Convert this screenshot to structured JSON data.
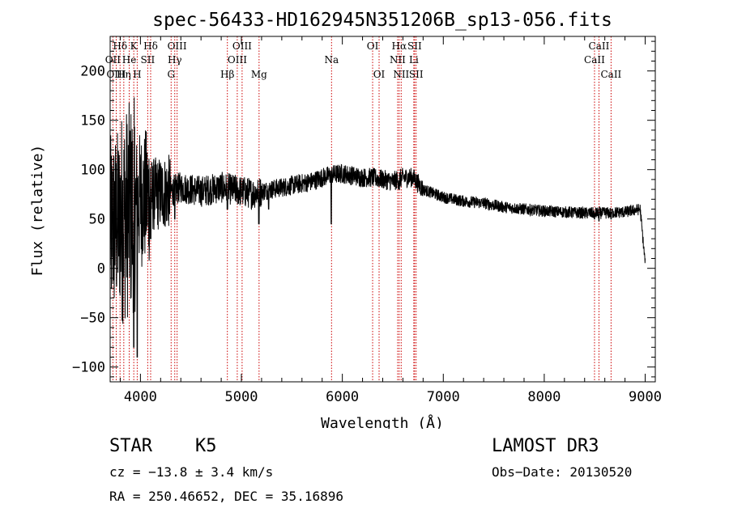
{
  "chart_data": {
    "type": "line",
    "title": "spec-56433-HD162945N351206B_sp13-056.fits",
    "xlabel": "Wavelength (Å)",
    "ylabel": "Flux (relative)",
    "xlim": [
      3700,
      9100
    ],
    "ylim": [
      -115,
      235
    ],
    "xticks": [
      4000,
      5000,
      6000,
      7000,
      8000,
      9000
    ],
    "yticks": [
      -100,
      -50,
      0,
      50,
      100,
      150,
      200
    ],
    "series": [
      {
        "name": "flux",
        "anchors": [
          [
            3700,
            40
          ],
          [
            3800,
            50
          ],
          [
            3900,
            60
          ],
          [
            4000,
            70
          ],
          [
            4100,
            74
          ],
          [
            4200,
            76
          ],
          [
            4300,
            78
          ],
          [
            4400,
            82
          ],
          [
            4500,
            80
          ],
          [
            4600,
            78
          ],
          [
            4700,
            80
          ],
          [
            4800,
            82
          ],
          [
            4900,
            80
          ],
          [
            5000,
            78
          ],
          [
            5100,
            76
          ],
          [
            5200,
            78
          ],
          [
            5300,
            80
          ],
          [
            5400,
            82
          ],
          [
            5500,
            84
          ],
          [
            5600,
            86
          ],
          [
            5700,
            88
          ],
          [
            5800,
            92
          ],
          [
            5900,
            95
          ],
          [
            6000,
            96
          ],
          [
            6100,
            94
          ],
          [
            6200,
            92
          ],
          [
            6300,
            92
          ],
          [
            6400,
            90
          ],
          [
            6500,
            88
          ],
          [
            6600,
            92
          ],
          [
            6700,
            92
          ],
          [
            6800,
            80
          ],
          [
            6900,
            76
          ],
          [
            7000,
            72
          ],
          [
            7200,
            68
          ],
          [
            7400,
            66
          ],
          [
            7600,
            62
          ],
          [
            7800,
            60
          ],
          [
            8000,
            58
          ],
          [
            8200,
            57
          ],
          [
            8400,
            56
          ],
          [
            8600,
            56
          ],
          [
            8800,
            57
          ],
          [
            8950,
            60
          ],
          [
            9000,
            5
          ]
        ],
        "features": [
          [
            3934,
            -80
          ],
          [
            3968,
            -90
          ],
          [
            4101,
            30
          ],
          [
            4340,
            50
          ],
          [
            4861,
            60
          ],
          [
            5173,
            45
          ],
          [
            5270,
            60
          ],
          [
            5890,
            45
          ],
          [
            6563,
            80
          ],
          [
            8498,
            50
          ],
          [
            8542,
            48
          ],
          [
            8662,
            50
          ]
        ]
      }
    ],
    "emission_lines": [
      {
        "label": "Hδ",
        "wavelength": 3798,
        "row": 0
      },
      {
        "label": "K",
        "wavelength": 3934,
        "row": 0
      },
      {
        "label": "Hδ",
        "wavelength": 4101,
        "row": 0
      },
      {
        "label": "OIII",
        "wavelength": 4363,
        "row": 0
      },
      {
        "label": "OIII",
        "wavelength": 5007,
        "row": 0
      },
      {
        "label": "OI",
        "wavelength": 6300,
        "row": 0
      },
      {
        "label": "Hα",
        "wavelength": 6563,
        "row": 0
      },
      {
        "label": "SII",
        "wavelength": 6716,
        "row": 0
      },
      {
        "label": "CaII",
        "wavelength": 8542,
        "row": 0
      },
      {
        "label": "OII",
        "wavelength": 3727,
        "row": 1
      },
      {
        "label": "He",
        "wavelength": 3889,
        "row": 1
      },
      {
        "label": "SII",
        "wavelength": 4072,
        "row": 1
      },
      {
        "label": "Hγ",
        "wavelength": 4340,
        "row": 1
      },
      {
        "label": "OIII",
        "wavelength": 4959,
        "row": 1
      },
      {
        "label": "Na",
        "wavelength": 5893,
        "row": 1
      },
      {
        "label": "NII",
        "wavelength": 6548,
        "row": 1
      },
      {
        "label": "Li",
        "wavelength": 6708,
        "row": 1
      },
      {
        "label": "CaII",
        "wavelength": 8498,
        "row": 1
      },
      {
        "label": "OIII",
        "wavelength": 3760,
        "row": 2
      },
      {
        "label": "Hη",
        "wavelength": 3835,
        "row": 2
      },
      {
        "label": "H",
        "wavelength": 3968,
        "row": 2
      },
      {
        "label": "G",
        "wavelength": 4304,
        "row": 2
      },
      {
        "label": "Hβ",
        "wavelength": 4861,
        "row": 2
      },
      {
        "label": "Mg",
        "wavelength": 5175,
        "row": 2
      },
      {
        "label": "OI",
        "wavelength": 6364,
        "row": 2
      },
      {
        "label": "NII",
        "wavelength": 6583,
        "row": 2
      },
      {
        "label": "SII",
        "wavelength": 6731,
        "row": 2
      },
      {
        "label": "CaII",
        "wavelength": 8662,
        "row": 2
      }
    ]
  },
  "info": {
    "object_class": "STAR",
    "subclass": "K5",
    "survey": "LAMOST DR3",
    "cz": "cz = −13.8 ± 3.4 km/s",
    "obs_date": "Obs−Date: 20130520",
    "coords": "RA = 250.46652, DEC =  35.16896"
  },
  "colors": {
    "line": "#000000",
    "marker": "#cc0000",
    "background": "#ffffff"
  }
}
